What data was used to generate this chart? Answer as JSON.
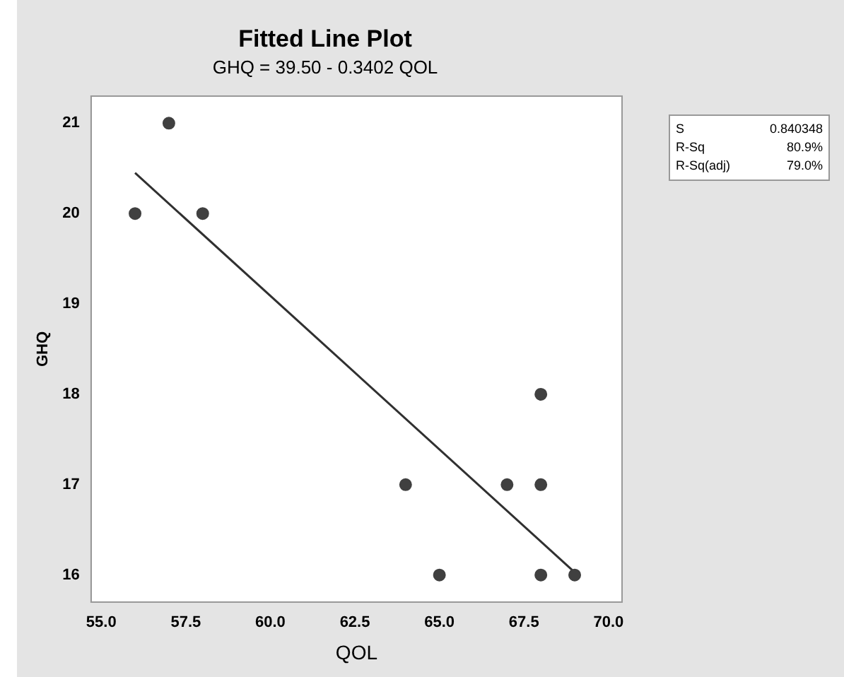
{
  "chart_data": {
    "type": "scatter",
    "title": "Fitted Line Plot",
    "subtitle": "GHQ = 39.50 - 0.3402 QOL",
    "xlabel": "QOL",
    "ylabel": "GHQ",
    "x": [
      56,
      57,
      58,
      64,
      65,
      67,
      68,
      68,
      68,
      69
    ],
    "series": [
      {
        "color": "#404040",
        "marker": "circle",
        "values": [
          20,
          21,
          20,
          17,
          16,
          17,
          18,
          17,
          16,
          16
        ]
      },
      {
        "type": "line",
        "marker": "none",
        "line_style": "solid",
        "color": "#303030",
        "x": [
          56,
          69
        ],
        "values": [
          20.45,
          16.03
        ]
      }
    ],
    "xlim": [
      54.7,
      70.4
    ],
    "xticks": [
      {
        "value": 55,
        "label": "55.0"
      },
      {
        "value": 57.5,
        "label": "57.5"
      },
      {
        "value": 60,
        "label": "60.0"
      },
      {
        "value": 62.5,
        "label": "62.5"
      },
      {
        "value": 65,
        "label": "65.0"
      },
      {
        "value": 67.5,
        "label": "67.5"
      },
      {
        "value": 70,
        "label": "70.0"
      }
    ],
    "ylim": [
      15.7,
      21.3
    ],
    "yticks": [
      16,
      17,
      18,
      19,
      20,
      21
    ],
    "annotations": [
      "S",
      "0.840348",
      "R-Sq",
      "80.9%",
      "R-Sq(adj)",
      "79.0%"
    ],
    "grid": false,
    "legend": false
  }
}
